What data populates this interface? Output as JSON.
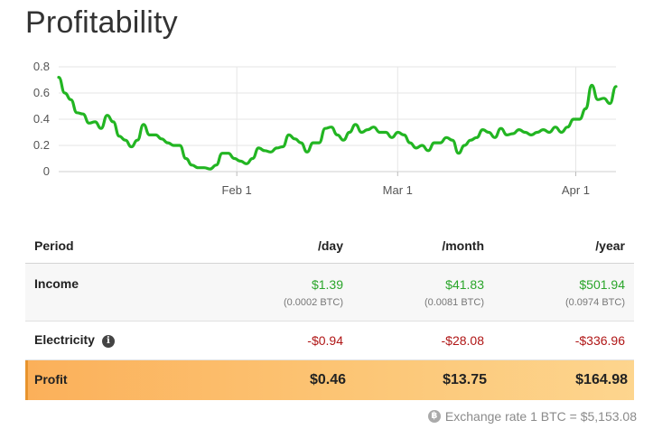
{
  "page": {
    "title": "Profitability"
  },
  "chart_data": {
    "type": "line",
    "ylim": [
      0,
      0.8
    ],
    "yticks": [
      "0",
      "0.2",
      "0.4",
      "0.6",
      "0.8"
    ],
    "xticks": [
      {
        "label": "Feb 1",
        "day": 31
      },
      {
        "label": "Mar 1",
        "day": 59
      },
      {
        "label": "Apr 1",
        "day": 90
      }
    ],
    "xrange": [
      0,
      97
    ],
    "series_color": "#22b522",
    "series": [
      {
        "values": [
          0.72,
          0.6,
          0.55,
          0.45,
          0.44,
          0.37,
          0.38,
          0.33,
          0.43,
          0.38,
          0.27,
          0.24,
          0.19,
          0.24,
          0.36,
          0.28,
          0.28,
          0.25,
          0.22,
          0.2,
          0.2,
          0.1,
          0.05,
          0.03,
          0.03,
          0.02,
          0.05,
          0.14,
          0.14,
          0.1,
          0.08,
          0.06,
          0.1,
          0.18,
          0.16,
          0.15,
          0.18,
          0.19,
          0.28,
          0.25,
          0.22,
          0.15,
          0.22,
          0.22,
          0.33,
          0.34,
          0.28,
          0.24,
          0.3,
          0.36,
          0.3,
          0.32,
          0.34,
          0.3,
          0.3,
          0.26,
          0.3,
          0.28,
          0.22,
          0.18,
          0.2,
          0.16,
          0.22,
          0.22,
          0.26,
          0.24,
          0.14,
          0.2,
          0.24,
          0.26,
          0.32,
          0.3,
          0.26,
          0.33,
          0.28,
          0.29,
          0.32,
          0.3,
          0.28,
          0.3,
          0.32,
          0.3,
          0.34,
          0.3,
          0.34,
          0.4,
          0.4,
          0.48,
          0.66,
          0.55,
          0.56,
          0.52,
          0.65
        ]
      }
    ]
  },
  "table": {
    "headers": [
      "Period",
      "/day",
      "/month",
      "/year"
    ],
    "income": {
      "label": "Income",
      "day": "$1.39",
      "day_btc": "(0.0002 BTC)",
      "month": "$41.83",
      "month_btc": "(0.0081 BTC)",
      "year": "$501.94",
      "year_btc": "(0.0974 BTC)"
    },
    "electricity": {
      "label": "Electricity",
      "icon": "info-icon",
      "day": "-$0.94",
      "month": "-$28.08",
      "year": "-$336.96"
    },
    "profit": {
      "label": "Profit",
      "day": "$0.46",
      "month": "$13.75",
      "year": "$164.98"
    }
  },
  "footer": {
    "exchange_rate": "Exchange rate 1 BTC = $5,153.08",
    "icon": "bitcoin-icon",
    "icon_glyph": "฿"
  }
}
